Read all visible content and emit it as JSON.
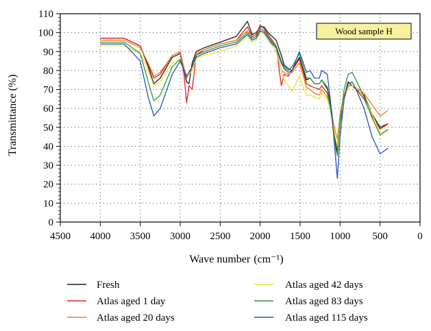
{
  "chart_data": {
    "type": "line",
    "annotation": "Wood sample H",
    "xlabel": "Wave number",
    "xlabel_unit": "(cm⁻¹)",
    "ylabel": "Transmittance (%)",
    "xlim": [
      4500,
      0
    ],
    "ylim": [
      0,
      110
    ],
    "x_ticks": [
      4500,
      4000,
      3500,
      3000,
      2500,
      2000,
      1500,
      1000,
      500,
      0
    ],
    "y_ticks": [
      0,
      10,
      20,
      30,
      40,
      50,
      60,
      70,
      80,
      90,
      100,
      110
    ],
    "grid": true,
    "legend_position": "bottom",
    "series": [
      {
        "name": "Fresh",
        "color": "#1a1a1a",
        "x": [
          4000,
          3700,
          3500,
          3400,
          3330,
          3250,
          3100,
          3000,
          2950,
          2920,
          2890,
          2850,
          2800,
          2700,
          2500,
          2300,
          2160,
          2100,
          2050,
          2000,
          1950,
          1900,
          1850,
          1800,
          1735,
          1700,
          1650,
          1600,
          1510,
          1460,
          1420,
          1375,
          1320,
          1260,
          1230,
          1160,
          1110,
          1060,
          1035,
          1000,
          950,
          900,
          850,
          800,
          700,
          600,
          500,
          400
        ],
        "y": [
          97,
          97,
          93,
          82,
          73,
          76,
          87,
          89,
          80,
          74,
          73,
          84,
          90,
          92,
          95,
          98,
          106,
          99,
          100,
          103,
          103,
          100,
          98,
          96,
          88,
          83,
          81,
          80,
          87,
          80,
          75,
          76,
          73,
          73,
          75,
          71,
          60,
          43,
          37,
          52,
          66,
          74,
          72,
          70,
          67,
          57,
          50,
          52
        ]
      },
      {
        "name": "Atlas aged 1 day",
        "color": "#e02020",
        "x": [
          4000,
          3700,
          3500,
          3400,
          3330,
          3250,
          3100,
          3000,
          2950,
          2920,
          2890,
          2850,
          2800,
          2700,
          2500,
          2300,
          2160,
          2100,
          2050,
          2000,
          1950,
          1900,
          1850,
          1800,
          1735,
          1700,
          1650,
          1600,
          1510,
          1460,
          1420,
          1375,
          1320,
          1260,
          1230,
          1160,
          1110,
          1060,
          1035,
          1000,
          950,
          900,
          850,
          800,
          700,
          600,
          500,
          400
        ],
        "y": [
          97,
          97,
          93,
          83,
          76,
          78,
          88,
          90,
          77,
          63,
          72,
          70,
          88,
          91,
          94,
          96,
          103,
          98,
          99,
          104,
          102,
          99,
          96,
          93,
          72,
          78,
          77,
          80,
          86,
          79,
          73,
          72,
          71,
          70,
          72,
          68,
          58,
          44,
          40,
          55,
          67,
          72,
          72,
          70,
          65,
          56,
          49,
          52
        ]
      },
      {
        "name": "Atlas aged 20 days",
        "color": "#f07d1e",
        "x": [
          4000,
          3700,
          3500,
          3400,
          3330,
          3250,
          3100,
          3000,
          2950,
          2920,
          2890,
          2850,
          2800,
          2700,
          2500,
          2300,
          2160,
          2100,
          2050,
          2000,
          1950,
          1900,
          1850,
          1800,
          1735,
          1700,
          1650,
          1600,
          1510,
          1460,
          1420,
          1375,
          1320,
          1260,
          1230,
          1160,
          1110,
          1060,
          1035,
          1000,
          950,
          900,
          850,
          800,
          700,
          600,
          500,
          400
        ],
        "y": [
          96,
          96,
          92,
          84,
          77,
          79,
          88,
          90,
          81,
          76,
          78,
          82,
          89,
          91,
          94,
          96,
          101,
          97,
          98,
          102,
          101,
          98,
          95,
          92,
          80,
          79,
          78,
          79,
          84,
          77,
          71,
          70,
          68,
          67,
          70,
          66,
          58,
          48,
          44,
          57,
          67,
          72,
          72,
          71,
          68,
          62,
          56,
          59
        ]
      },
      {
        "name": "Atlas aged 42 days",
        "color": "#f0e030",
        "x": [
          4000,
          3700,
          3500,
          3400,
          3330,
          3250,
          3100,
          3000,
          2950,
          2920,
          2890,
          2850,
          2800,
          2700,
          2500,
          2300,
          2160,
          2100,
          2050,
          2000,
          1950,
          1900,
          1850,
          1800,
          1735,
          1700,
          1650,
          1600,
          1510,
          1460,
          1420,
          1375,
          1320,
          1260,
          1230,
          1160,
          1110,
          1060,
          1035,
          1000,
          950,
          900,
          850,
          800,
          700,
          600,
          500,
          400
        ],
        "y": [
          93,
          93,
          89,
          80,
          72,
          74,
          84,
          86,
          80,
          77,
          78,
          80,
          86,
          88,
          90,
          93,
          98,
          95,
          96,
          100,
          99,
          96,
          93,
          90,
          80,
          75,
          72,
          69,
          77,
          71,
          67,
          67,
          66,
          65,
          68,
          65,
          57,
          45,
          40,
          54,
          65,
          71,
          72,
          71,
          66,
          57,
          47,
          48
        ]
      },
      {
        "name": "Atlas aged 83 days",
        "color": "#2a9a3a",
        "x": [
          4000,
          3700,
          3500,
          3400,
          3330,
          3250,
          3100,
          3000,
          2950,
          2920,
          2890,
          2850,
          2800,
          2700,
          2500,
          2300,
          2160,
          2100,
          2050,
          2000,
          1950,
          1900,
          1850,
          1800,
          1735,
          1700,
          1650,
          1600,
          1510,
          1460,
          1420,
          1375,
          1320,
          1260,
          1230,
          1160,
          1110,
          1060,
          1035,
          1000,
          950,
          900,
          850,
          800,
          700,
          600,
          500,
          400
        ],
        "y": [
          95,
          95,
          89,
          74,
          64,
          67,
          82,
          86,
          80,
          77,
          79,
          82,
          88,
          90,
          93,
          95,
          100,
          97,
          98,
          102,
          101,
          98,
          95,
          93,
          85,
          82,
          80,
          82,
          89,
          82,
          76,
          76,
          73,
          73,
          75,
          70,
          57,
          40,
          35,
          53,
          70,
          78,
          79,
          75,
          66,
          55,
          46,
          49
        ]
      },
      {
        "name": "Atlas aged 115 days",
        "color": "#2450b4",
        "x": [
          4000,
          3700,
          3500,
          3400,
          3330,
          3250,
          3100,
          3000,
          2950,
          2920,
          2890,
          2850,
          2800,
          2700,
          2500,
          2300,
          2160,
          2100,
          2050,
          2000,
          1950,
          1900,
          1850,
          1800,
          1735,
          1700,
          1650,
          1600,
          1510,
          1460,
          1420,
          1375,
          1320,
          1260,
          1230,
          1160,
          1110,
          1060,
          1035,
          1000,
          950,
          900,
          850,
          800,
          700,
          600,
          500,
          400
        ],
        "y": [
          94,
          94,
          85,
          66,
          56,
          60,
          78,
          85,
          80,
          77,
          79,
          82,
          87,
          89,
          92,
          94,
          99,
          96,
          97,
          101,
          100,
          97,
          94,
          92,
          84,
          81,
          79,
          80,
          90,
          84,
          79,
          80,
          76,
          76,
          80,
          78,
          60,
          36,
          23,
          45,
          65,
          73,
          74,
          70,
          60,
          45,
          36,
          39
        ]
      }
    ]
  }
}
